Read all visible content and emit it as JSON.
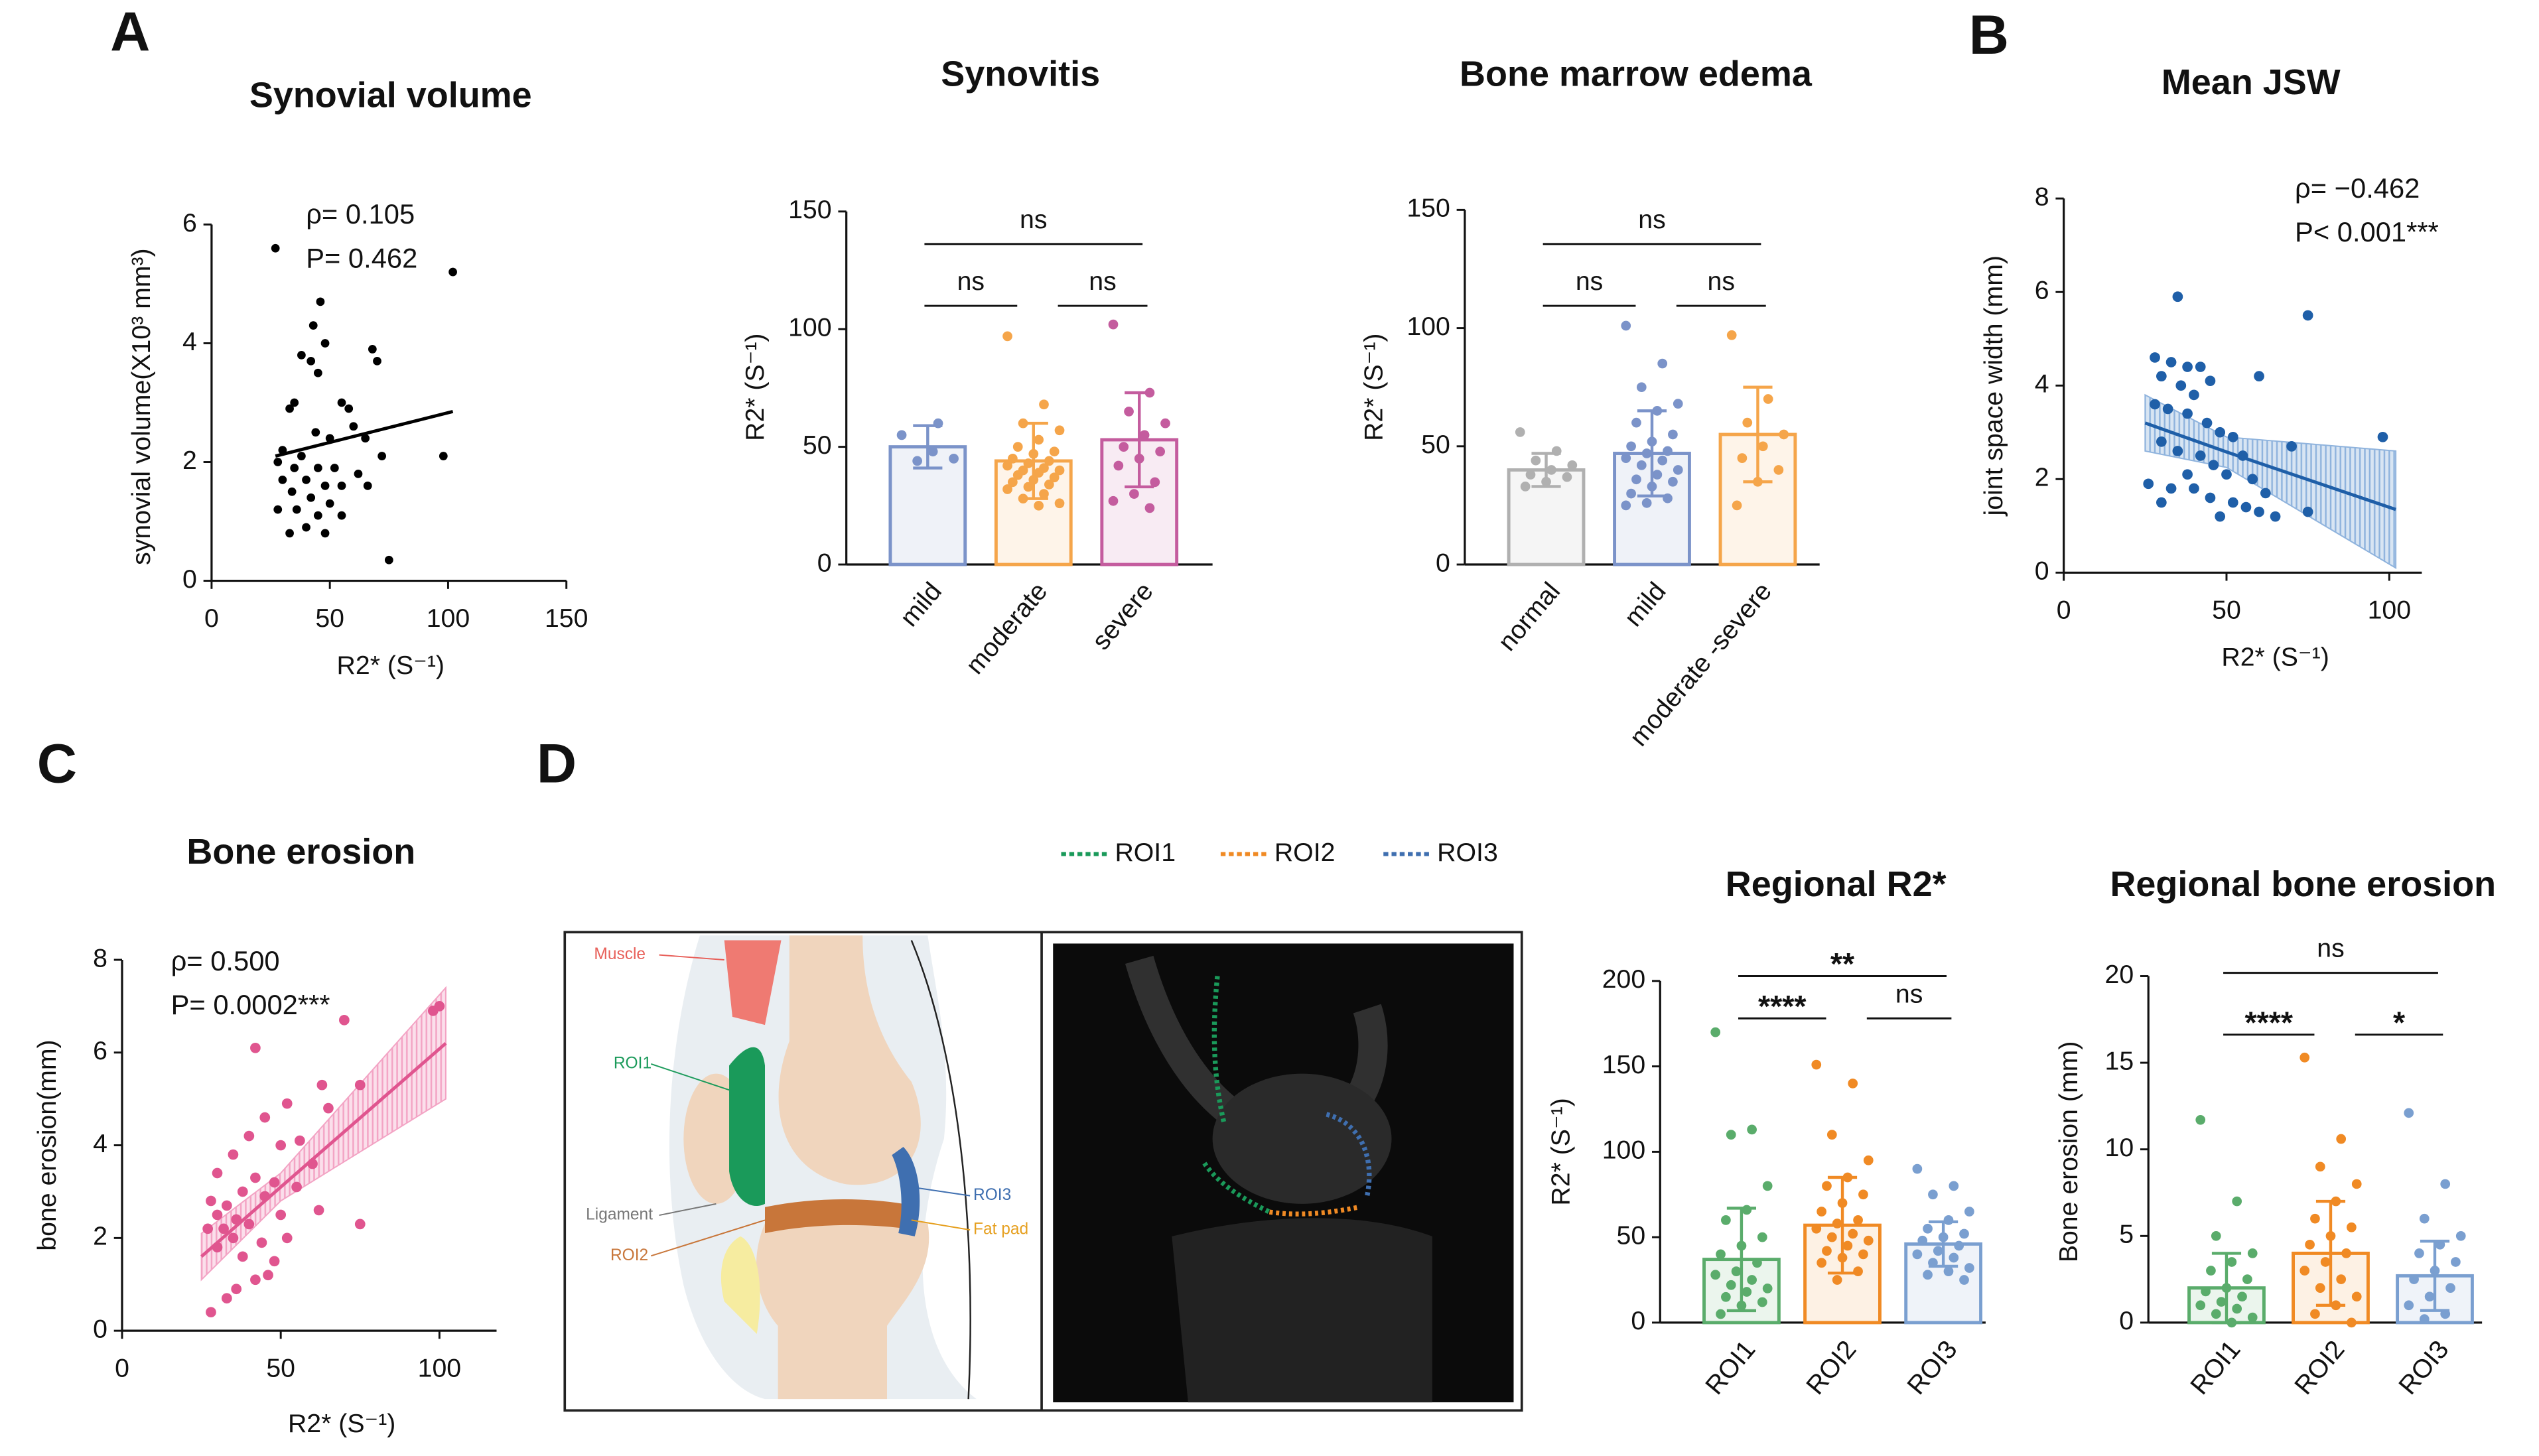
{
  "panels": [
    "A",
    "B",
    "C",
    "D"
  ],
  "diagram": {
    "legend": [
      "ROI1",
      "ROI2",
      "ROI3"
    ],
    "legend_colors": [
      "#1a9a5a",
      "#f08a24",
      "#3f6fb0"
    ],
    "labels": [
      "Muscle",
      "ROI1",
      "Ligament",
      "ROI2",
      "ROI3",
      "Fat pad"
    ]
  },
  "chart_data": [
    {
      "type": "scatter",
      "title": "Synovial volume",
      "x_label": "R2* (S⁻¹)",
      "y_label": "synovial volume(X10³ mm³)",
      "annotations": [
        "ρ= 0.105",
        "P= 0.462"
      ],
      "color": "#000000",
      "x": [
        27,
        102,
        46,
        43,
        48,
        38,
        42,
        68,
        70,
        45,
        35,
        33,
        55,
        58,
        44,
        50,
        60,
        65,
        30,
        38,
        72,
        98,
        28,
        35,
        45,
        52,
        62,
        30,
        40,
        48,
        55,
        66,
        34,
        42,
        50,
        28,
        36,
        45,
        55,
        40,
        33,
        48,
        75
      ],
      "y": [
        5.6,
        5.2,
        4.7,
        4.3,
        4.0,
        3.8,
        3.7,
        3.9,
        3.7,
        3.5,
        3.0,
        2.9,
        3.0,
        2.9,
        2.5,
        2.4,
        2.6,
        2.4,
        2.2,
        2.1,
        2.1,
        2.1,
        2.0,
        1.9,
        1.9,
        1.9,
        1.8,
        1.7,
        1.7,
        1.6,
        1.6,
        1.6,
        1.5,
        1.4,
        1.3,
        1.2,
        1.2,
        1.1,
        1.1,
        0.9,
        0.8,
        0.8,
        0.35
      ],
      "fit_x": [
        27,
        102
      ],
      "fit_y": [
        2.1,
        2.85
      ],
      "xlim": [
        0,
        150
      ],
      "xticks": [
        0,
        50,
        100,
        150
      ],
      "ylim": [
        0,
        6
      ],
      "yticks": [
        0,
        2,
        4,
        6
      ]
    },
    {
      "type": "bar",
      "title": "Synovitis",
      "y_label": "R2* (S⁻¹)",
      "categories": [
        "mild",
        "moderate",
        "severe"
      ],
      "values": [
        50,
        44,
        53
      ],
      "errors": [
        9,
        16,
        20
      ],
      "colors": [
        "#7b93c9",
        "#f5a54a",
        "#c45c9e"
      ],
      "points": [
        [
          55,
          60,
          44,
          45,
          48
        ],
        [
          97,
          68,
          60,
          57,
          53,
          50,
          48,
          47,
          45,
          44,
          43,
          42,
          41,
          40,
          40,
          39,
          38,
          37,
          36,
          35,
          34,
          33,
          32,
          30,
          28,
          26,
          25
        ],
        [
          102,
          73,
          65,
          60,
          55,
          50,
          48,
          45,
          42,
          35,
          30,
          27,
          24
        ]
      ],
      "comparisons": [
        {
          "between": [
            "mild",
            "severe"
          ],
          "label": "ns"
        },
        {
          "between": [
            "mild",
            "moderate"
          ],
          "label": "ns"
        },
        {
          "between": [
            "moderate",
            "severe"
          ],
          "label": "ns"
        }
      ],
      "ylim": [
        0,
        150
      ],
      "yticks": [
        0,
        50,
        100,
        150
      ]
    },
    {
      "type": "bar",
      "title": "Bone marrow edema",
      "y_label": "R2* (S⁻¹)",
      "categories": [
        "normal",
        "mild",
        "moderate -severe"
      ],
      "values": [
        40,
        47,
        55
      ],
      "errors": [
        7,
        18,
        20
      ],
      "colors": [
        "#b0b0b0",
        "#7b93c9",
        "#f5a54a"
      ],
      "points": [
        [
          56,
          48,
          44,
          42,
          40,
          38,
          37,
          35,
          33
        ],
        [
          101,
          85,
          75,
          68,
          65,
          60,
          55,
          52,
          50,
          48,
          47,
          45,
          44,
          42,
          40,
          38,
          36,
          35,
          33,
          30,
          28,
          26,
          25
        ],
        [
          97,
          70,
          60,
          55,
          50,
          45,
          40,
          35,
          25
        ]
      ],
      "comparisons": [
        {
          "between": [
            "normal",
            "moderate -severe"
          ],
          "label": "ns"
        },
        {
          "between": [
            "normal",
            "mild"
          ],
          "label": "ns"
        },
        {
          "between": [
            "mild",
            "moderate -severe"
          ],
          "label": "ns"
        }
      ],
      "ylim": [
        0,
        150
      ],
      "yticks": [
        0,
        50,
        100,
        150
      ]
    },
    {
      "type": "scatter",
      "title": "Mean JSW",
      "x_label": "R2* (S⁻¹)",
      "y_label": "joint space width (mm)",
      "annotations": [
        "ρ= −0.462",
        "P< 0.001***"
      ],
      "color": "#1f5fa8",
      "band_color": "#8fb3dd",
      "x": [
        35,
        75,
        28,
        33,
        38,
        42,
        30,
        45,
        60,
        36,
        40,
        28,
        32,
        38,
        44,
        48,
        52,
        98,
        30,
        35,
        42,
        55,
        70,
        46,
        38,
        50,
        58,
        26,
        33,
        40,
        62,
        45,
        52,
        56,
        60,
        65,
        75,
        48,
        30
      ],
      "y": [
        5.9,
        5.5,
        4.6,
        4.5,
        4.4,
        4.4,
        4.2,
        4.1,
        4.2,
        4.0,
        3.8,
        3.6,
        3.5,
        3.4,
        3.2,
        3.0,
        2.9,
        2.9,
        2.8,
        2.6,
        2.5,
        2.5,
        2.7,
        2.3,
        2.1,
        2.1,
        2.0,
        1.9,
        1.8,
        1.8,
        1.7,
        1.6,
        1.5,
        1.4,
        1.3,
        1.2,
        1.3,
        1.2,
        1.5
      ],
      "fit_x": [
        25,
        50,
        102
      ],
      "fit_y": [
        3.2,
        2.58,
        1.35
      ],
      "ci_lower": [
        2.6,
        2.25,
        0.1
      ],
      "ci_upper": [
        3.8,
        2.9,
        2.6
      ],
      "xlim": [
        0,
        110
      ],
      "xticks": [
        0,
        50,
        100
      ],
      "ylim": [
        0,
        8
      ],
      "yticks": [
        0,
        2,
        4,
        6,
        8
      ]
    },
    {
      "type": "scatter",
      "title": "Bone erosion",
      "x_label": "R2* (S⁻¹)",
      "y_label": "bone erosion(mm)",
      "annotations": [
        "ρ= 0.500",
        "P= 0.0002***"
      ],
      "color": "#e0558f",
      "band_color": "#f3a3c4",
      "x": [
        100,
        98,
        70,
        42,
        63,
        75,
        52,
        65,
        45,
        40,
        50,
        56,
        35,
        60,
        30,
        42,
        48,
        55,
        38,
        28,
        33,
        45,
        62,
        30,
        36,
        40,
        27,
        32,
        50,
        75,
        35,
        44,
        52,
        30,
        38,
        46,
        42,
        36,
        33,
        28,
        48
      ],
      "y": [
        7.0,
        6.9,
        6.7,
        6.1,
        5.3,
        5.3,
        4.9,
        4.8,
        4.6,
        4.2,
        4.0,
        4.1,
        3.8,
        3.6,
        3.4,
        3.3,
        3.2,
        3.1,
        3.0,
        2.8,
        2.7,
        2.9,
        2.6,
        2.5,
        2.4,
        2.3,
        2.2,
        2.2,
        2.5,
        2.3,
        2.0,
        1.9,
        2.0,
        1.8,
        1.6,
        1.2,
        1.1,
        0.9,
        0.7,
        0.4,
        1.5
      ],
      "fit_x": [
        25,
        50,
        102
      ],
      "fit_y": [
        1.6,
        3.1,
        6.2
      ],
      "ci_lower": [
        1.1,
        2.8,
        5.0
      ],
      "ci_upper": [
        2.1,
        3.4,
        7.4
      ],
      "xlim": [
        0,
        118
      ],
      "xticks": [
        0,
        50,
        100
      ],
      "ylim": [
        0,
        8
      ],
      "yticks": [
        0,
        2,
        4,
        6,
        8
      ]
    },
    {
      "type": "bar",
      "title": "Regional R2*",
      "y_label": "R2* (S⁻¹)",
      "categories": [
        "ROI1",
        "ROI2",
        "ROI3"
      ],
      "values": [
        37,
        57,
        46
      ],
      "errors": [
        30,
        28,
        13
      ],
      "colors": [
        "#5aac6b",
        "#f08a24",
        "#7a9fd0"
      ],
      "points": [
        [
          170,
          113,
          110,
          80,
          66,
          60,
          50,
          45,
          40,
          35,
          30,
          28,
          25,
          22,
          20,
          18,
          15,
          12,
          10,
          5
        ],
        [
          151,
          140,
          110,
          95,
          85,
          80,
          75,
          70,
          65,
          60,
          58,
          55,
          52,
          50,
          48,
          45,
          42,
          40,
          38,
          35,
          30,
          25
        ],
        [
          90,
          80,
          75,
          65,
          60,
          55,
          52,
          50,
          48,
          45,
          42,
          40,
          38,
          35,
          32,
          30,
          28,
          25
        ]
      ],
      "comparisons": [
        {
          "between": [
            "ROI1",
            "ROI3"
          ],
          "label": "**"
        },
        {
          "between": [
            "ROI1",
            "ROI2"
          ],
          "label": "****"
        },
        {
          "between": [
            "ROI2",
            "ROI3"
          ],
          "label": "ns"
        }
      ],
      "ylim": [
        0,
        200
      ],
      "yticks": [
        0,
        50,
        100,
        150,
        200
      ]
    },
    {
      "type": "bar",
      "title": "Regional bone erosion",
      "y_label": "Bone erosion (mm)",
      "categories": [
        "ROI1",
        "ROI2",
        "ROI3"
      ],
      "values": [
        2,
        4,
        2.7
      ],
      "errors": [
        2,
        3,
        2
      ],
      "colors": [
        "#5aac6b",
        "#f08a24",
        "#7a9fd0"
      ],
      "points": [
        [
          11.7,
          7,
          5,
          4,
          3.5,
          3,
          2.5,
          2,
          1.8,
          1.5,
          1.2,
          1,
          0.8,
          0.5,
          0.3,
          0
        ],
        [
          15.3,
          10.6,
          9,
          8,
          7,
          6,
          5.5,
          5,
          4.5,
          4,
          3.5,
          3,
          2.5,
          2,
          1.5,
          1,
          0.5,
          0
        ],
        [
          12.1,
          8,
          6,
          5,
          4.5,
          4,
          3.5,
          3,
          2.5,
          2,
          1.5,
          1,
          0.5,
          0.2
        ]
      ],
      "comparisons": [
        {
          "between": [
            "ROI1",
            "ROI3"
          ],
          "label": "ns"
        },
        {
          "between": [
            "ROI1",
            "ROI2"
          ],
          "label": "****"
        },
        {
          "between": [
            "ROI2",
            "ROI3"
          ],
          "label": "*"
        }
      ],
      "ylim": [
        0,
        20
      ],
      "yticks": [
        0,
        5,
        10,
        15,
        20
      ]
    }
  ]
}
